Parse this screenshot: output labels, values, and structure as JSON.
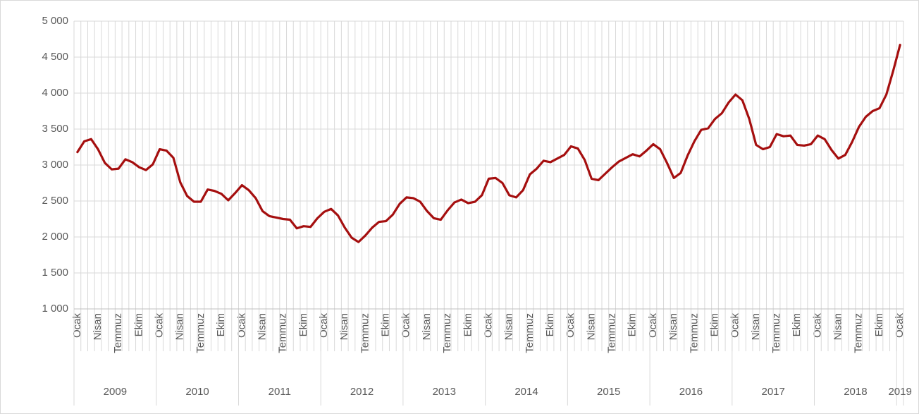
{
  "chart_data": {
    "type": "line",
    "categories": [
      "Ocak",
      null,
      null,
      "Nisan",
      null,
      null,
      "Temmuz",
      null,
      null,
      "Ekim",
      null,
      null,
      "Ocak",
      null,
      null,
      "Nisan",
      null,
      null,
      "Temmuz",
      null,
      null,
      "Ekim",
      null,
      null,
      "Ocak",
      null,
      null,
      "Nisan",
      null,
      null,
      "Temmuz",
      null,
      null,
      "Ekim",
      null,
      null,
      "Ocak",
      null,
      null,
      "Nisan",
      null,
      null,
      "Temmuz",
      null,
      null,
      "Ekim",
      null,
      null,
      "Ocak",
      null,
      null,
      "Nisan",
      null,
      null,
      "Temmuz",
      null,
      null,
      "Ekim",
      null,
      null,
      "Ocak",
      null,
      null,
      "Nisan",
      null,
      null,
      "Temmuz",
      null,
      null,
      "Ekim",
      null,
      null,
      "Ocak",
      null,
      null,
      "Nisan",
      null,
      null,
      "Temmuz",
      null,
      null,
      "Ekim",
      null,
      null,
      "Ocak",
      null,
      null,
      "Nisan",
      null,
      null,
      "Temmuz",
      null,
      null,
      "Ekim",
      null,
      null,
      "Ocak",
      null,
      null,
      "Nisan",
      null,
      null,
      "Temmuz",
      null,
      null,
      "Ekim",
      null,
      null,
      "Ocak",
      null,
      null,
      "Nisan",
      null,
      null,
      "Temmuz",
      null,
      null,
      "Ekim",
      null,
      null,
      "Ocak"
    ],
    "groups": [
      "2009",
      "2010",
      "2011",
      "2012",
      "2013",
      "2014",
      "2015",
      "2016",
      "2017",
      "2018",
      "2019"
    ],
    "values": [
      3180,
      3330,
      3360,
      3220,
      3030,
      2940,
      2950,
      3080,
      3040,
      2970,
      2930,
      3010,
      3220,
      3200,
      3100,
      2760,
      2570,
      2490,
      2490,
      2660,
      2640,
      2600,
      2510,
      2610,
      2720,
      2650,
      2540,
      2360,
      2290,
      2270,
      2250,
      2240,
      2120,
      2150,
      2140,
      2260,
      2350,
      2390,
      2300,
      2130,
      1990,
      1930,
      2020,
      2130,
      2210,
      2220,
      2310,
      2460,
      2550,
      2540,
      2490,
      2360,
      2260,
      2240,
      2370,
      2480,
      2520,
      2470,
      2490,
      2580,
      2810,
      2820,
      2750,
      2580,
      2550,
      2650,
      2870,
      2950,
      3060,
      3040,
      3090,
      3140,
      3260,
      3230,
      3070,
      2810,
      2790,
      2880,
      2970,
      3050,
      3100,
      3150,
      3120,
      3200,
      3290,
      3220,
      3030,
      2820,
      2890,
      3130,
      3330,
      3490,
      3510,
      3640,
      3720,
      3870,
      3980,
      3900,
      3640,
      3280,
      3220,
      3250,
      3430,
      3400,
      3410,
      3280,
      3270,
      3290,
      3410,
      3360,
      3210,
      3090,
      3140,
      3320,
      3530,
      3670,
      3750,
      3790,
      3980,
      4310,
      4670
    ],
    "color": "#a50f0f",
    "ylim": [
      1000,
      5000
    ],
    "yticks": [
      {
        "value": 1000,
        "label": "1 000"
      },
      {
        "value": 1500,
        "label": "1 500"
      },
      {
        "value": 2000,
        "label": "2 000"
      },
      {
        "value": 2500,
        "label": "2 500"
      },
      {
        "value": 3000,
        "label": "3 000"
      },
      {
        "value": 3500,
        "label": "3 500"
      },
      {
        "value": 4000,
        "label": "4 000"
      },
      {
        "value": 4500,
        "label": "4 500"
      },
      {
        "value": 5000,
        "label": "5 000"
      }
    ],
    "grid": true
  }
}
